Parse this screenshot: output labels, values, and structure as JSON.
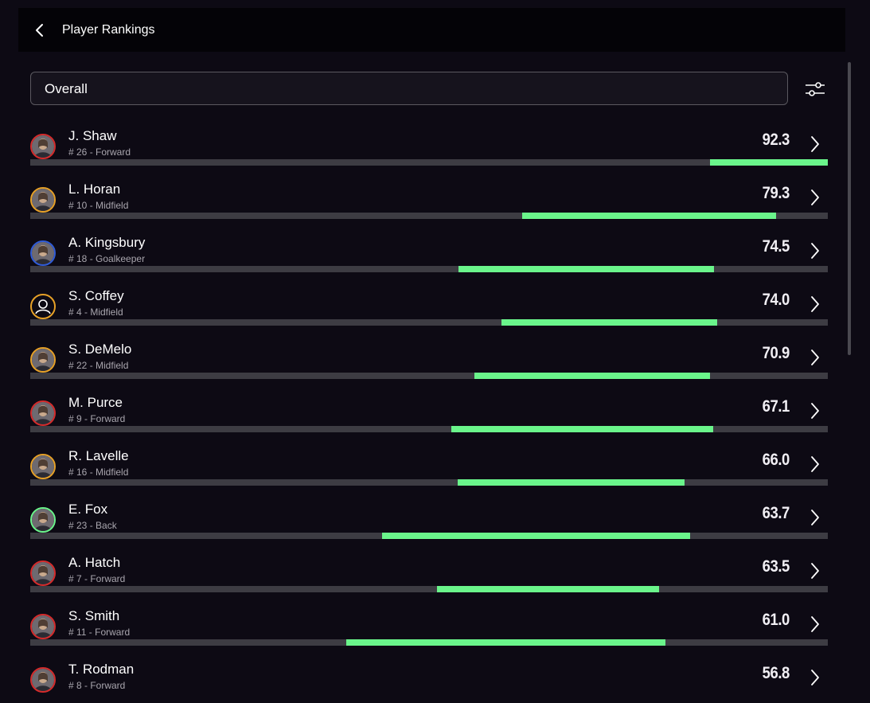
{
  "header": {
    "title": "Player Rankings"
  },
  "search": {
    "value": "Overall"
  },
  "colors": {
    "accent_bar": "#6af58b",
    "track": "#3d3c43",
    "background": "#0d0a14",
    "forward": "#d52b2b",
    "midfield": "#e7a127",
    "goalkeeper": "#2f5bd8",
    "back": "#6af58b"
  },
  "players": [
    {
      "name": "J. Shaw",
      "sub": "# 26 - Forward",
      "score": "92.3",
      "position": "forward",
      "range": [
        0.852,
        1.0
      ]
    },
    {
      "name": "L. Horan",
      "sub": "# 10 - Midfield",
      "score": "79.3",
      "position": "midfield",
      "range": [
        0.617,
        0.935
      ]
    },
    {
      "name": "A. Kingsbury",
      "sub": "# 18 - Goalkeeper",
      "score": "74.5",
      "position": "goalkeeper",
      "range": [
        0.537,
        0.857
      ]
    },
    {
      "name": "S. Coffey",
      "sub": "# 4 - Midfield",
      "score": "74.0",
      "position": "midfield",
      "range": [
        0.591,
        0.861
      ],
      "placeholder": true
    },
    {
      "name": "S. DeMelo",
      "sub": "# 22 - Midfield",
      "score": "70.9",
      "position": "midfield",
      "range": [
        0.557,
        0.852
      ]
    },
    {
      "name": "M. Purce",
      "sub": "# 9 - Forward",
      "score": "67.1",
      "position": "forward",
      "range": [
        0.528,
        0.856
      ]
    },
    {
      "name": "R. Lavelle",
      "sub": "# 16 - Midfield",
      "score": "66.0",
      "position": "midfield",
      "range": [
        0.536,
        0.82
      ]
    },
    {
      "name": "E. Fox",
      "sub": "# 23 - Back",
      "score": "63.7",
      "position": "back",
      "range": [
        0.441,
        0.827
      ]
    },
    {
      "name": "A. Hatch",
      "sub": "# 7 - Forward",
      "score": "63.5",
      "position": "forward",
      "range": [
        0.51,
        0.788
      ]
    },
    {
      "name": "S. Smith",
      "sub": "# 11 - Forward",
      "score": "61.0",
      "position": "forward",
      "range": [
        0.396,
        0.796
      ]
    },
    {
      "name": "T. Rodman",
      "sub": "# 8 - Forward",
      "score": "56.8",
      "position": "forward",
      "range": null
    }
  ],
  "icons": {
    "back": "chevron-left-icon",
    "filter": "sliders-icon",
    "row": "chevron-right-icon",
    "placeholder_avatar": "user-outline-icon"
  }
}
